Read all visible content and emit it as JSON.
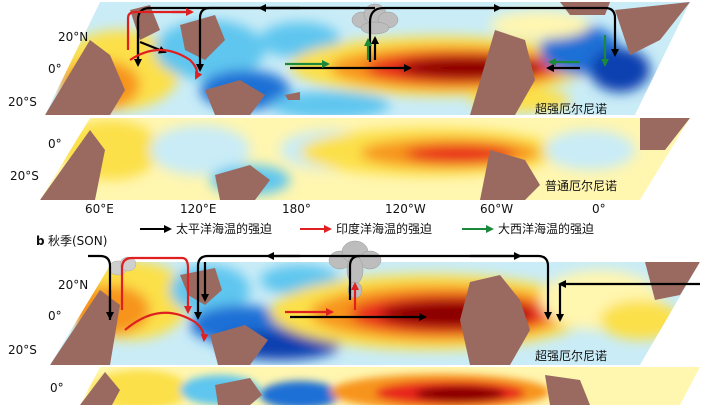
{
  "panel_b": {
    "letter": "b",
    "season": "秋季(SON)"
  },
  "maps": {
    "super_el_nino_label": "超强厄尔尼诺",
    "normal_el_nino_label": "普通厄尔尼诺"
  },
  "lat_ticks": {
    "n20": "20°N",
    "eq": "0°",
    "s20": "20°S"
  },
  "lon_ticks": [
    "60°E",
    "120°E",
    "180°",
    "120°W",
    "60°W",
    "0°"
  ],
  "legend": [
    {
      "label": "太平洋海温的强迫",
      "color": "#000000",
      "icon": "black-arrow"
    },
    {
      "label": "印度洋海温的强迫",
      "color": "#e02020",
      "icon": "red-arrow"
    },
    {
      "label": "大西洋海温的强迫",
      "color": "#1a8a3a",
      "icon": "green-arrow"
    }
  ],
  "colors": {
    "land": "#9a6a60",
    "warm_core": "#8b0000",
    "warm": "#e8251b",
    "orange": "#f7941d",
    "yellow": "#fce04a",
    "pale_yellow": "#fff6b0",
    "pale_blue": "#c9ecf7",
    "cyan": "#5fc6ef",
    "blue": "#1f6fd6",
    "deep_blue": "#0b3fb0"
  }
}
